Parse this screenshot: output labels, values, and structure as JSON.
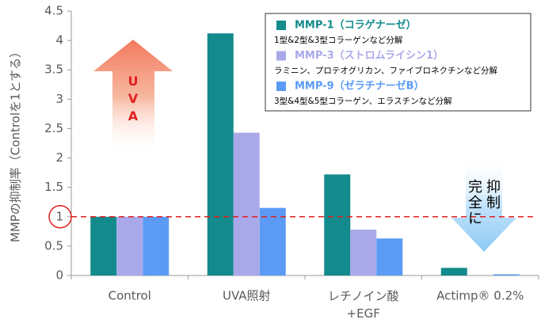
{
  "chart_data": {
    "type": "bar",
    "y_label": "MMPの抑制率（Controlを1とする）",
    "categories": [
      "Control",
      "UVA照射",
      "レチノイン酸\n+EGF",
      "Actimp® 0.2%"
    ],
    "series": [
      {
        "name": "MMP-1（コラゲナーゼ）",
        "description": "1型&2型&3型コラーゲンなど分解",
        "color": "#138a8c",
        "values": [
          1,
          4.12,
          1.72,
          0.13
        ]
      },
      {
        "name": "MMP-3（ストロムライシン1）",
        "description": "ラミニン、プロテオグリカン、ファイブロネクチンなど分解",
        "color": "#a9a9ea",
        "values": [
          1,
          2.43,
          0.78,
          0
        ]
      },
      {
        "name": "MMP-9（ゼラチナーゼB）",
        "description": "3型&4型&5型コラーゲン、エラスチンなど分解",
        "color": "#5b9bf5",
        "values": [
          1,
          1.15,
          0.63,
          0.02
        ]
      }
    ],
    "ylim": [
      0,
      4.5
    ],
    "yticks": [
      0,
      0.5,
      1,
      1.5,
      2,
      2.5,
      3,
      3.5,
      4,
      4.5
    ],
    "reference_line": {
      "value": 1,
      "color": "#e02020"
    },
    "annotations": [
      "UVA",
      "完全に\n抑制"
    ],
    "legend": "upper right"
  }
}
